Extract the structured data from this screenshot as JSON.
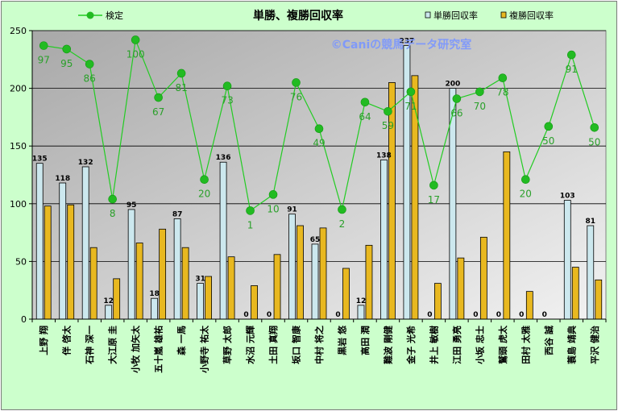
{
  "chart_data": {
    "type": "bar",
    "title": "単勝、複勝回収率",
    "watermark": "©Caniの競馬データ研究室",
    "ylim": [
      0,
      250
    ],
    "yticks": [
      0,
      50,
      100,
      150,
      200,
      250
    ],
    "grid": true,
    "legend_position": "top",
    "categories": [
      "上野 翔",
      "伴 啓太",
      "石神 深一",
      "大江原 圭",
      "小牧 加矢太",
      "五十嵐 雄祐",
      "森 一馬",
      "小野寺 祐太",
      "草野 太郎",
      "水沼 元輝",
      "土田 真翔",
      "坂口 智康",
      "中村 将之",
      "黒岩 悠",
      "高田 潤",
      "難波 剛健",
      "金子 光希",
      "井上 敏樹",
      "江田 勇亮",
      "小坂 忠士",
      "鷲頭 虎太",
      "田村 太雅",
      "西谷 誠",
      "蓑島 靖典",
      "平沢 健治"
    ],
    "series": [
      {
        "name": "単勝回収率",
        "kind": "bar",
        "color": "#cce8ee",
        "values": [
          135,
          118,
          132,
          12,
          95,
          18,
          87,
          31,
          136,
          0,
          0,
          91,
          65,
          0,
          12,
          138,
          237,
          0,
          200,
          0,
          0,
          0,
          0,
          103,
          81
        ],
        "labels": [
          "135",
          "118",
          "132",
          "12",
          "95",
          "18",
          "87",
          "31",
          "136",
          "0",
          "0",
          "91",
          "65",
          "0",
          "12",
          "138",
          "237",
          "0",
          "200",
          "0",
          "0",
          "0",
          "0",
          "103",
          "81"
        ]
      },
      {
        "name": "複勝回収率",
        "kind": "bar",
        "color": "#e8b820",
        "values": [
          98,
          99,
          62,
          35,
          66,
          78,
          62,
          37,
          54,
          29,
          56,
          81,
          79,
          44,
          64,
          205,
          211,
          31,
          53,
          71,
          145,
          24,
          0,
          45,
          34
        ]
      },
      {
        "name": "検定",
        "kind": "line",
        "color": "#22cc22",
        "values": [
          237,
          234,
          221,
          104,
          242,
          192,
          213,
          121,
          202,
          94,
          108,
          205,
          165,
          95,
          188,
          180,
          197,
          116,
          191,
          197,
          209,
          121,
          167,
          229,
          166
        ],
        "labels": [
          "97",
          "95",
          "86",
          "8",
          "100",
          "67",
          "81",
          "20",
          "73",
          "1",
          "10",
          "76",
          "49",
          "2",
          "64",
          "59",
          "71",
          "17",
          "66",
          "70",
          "78",
          "20",
          "50",
          "91",
          "50"
        ]
      }
    ]
  }
}
